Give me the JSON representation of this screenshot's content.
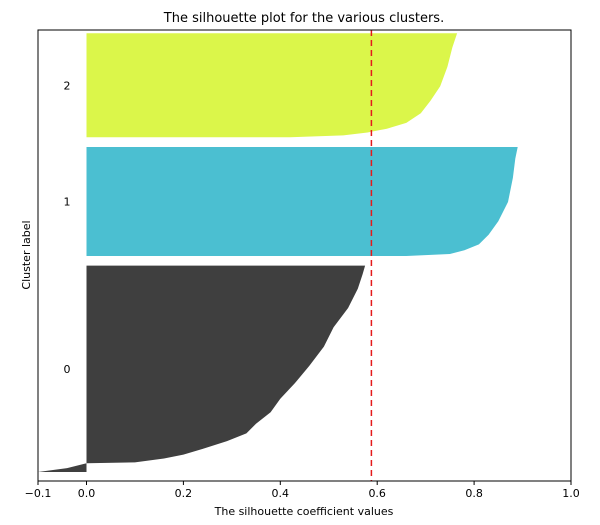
{
  "chart_data": {
    "type": "area",
    "title": "The silhouette plot for the various clusters.",
    "xlabel": "The silhouette coefficient values",
    "ylabel": "Cluster label",
    "xlim": [
      -0.1,
      1.0
    ],
    "ylim": [
      0,
      450
    ],
    "xticks": [
      "−0.1",
      "0.0",
      "0.2",
      "0.4",
      "0.6",
      "0.8",
      "1.0"
    ],
    "xtick_values": [
      -0.1,
      0.0,
      0.2,
      0.4,
      0.6,
      0.8,
      1.0
    ],
    "grid": false,
    "average_silhouette": 0.588,
    "average_line_color": "#e41a1c",
    "clusters": [
      {
        "label": "0",
        "color": "#3f3f3f",
        "y_lower": 0,
        "y_upper": 214,
        "profile": [
          [
            0,
            -0.1
          ],
          [
            4,
            -0.04
          ],
          [
            9,
            0.0
          ],
          [
            10,
            0.1
          ],
          [
            14,
            0.16
          ],
          [
            18,
            0.2
          ],
          [
            24,
            0.24
          ],
          [
            32,
            0.29
          ],
          [
            40,
            0.33
          ],
          [
            50,
            0.35
          ],
          [
            62,
            0.38
          ],
          [
            76,
            0.4
          ],
          [
            92,
            0.43
          ],
          [
            110,
            0.46
          ],
          [
            130,
            0.49
          ],
          [
            150,
            0.51
          ],
          [
            170,
            0.54
          ],
          [
            190,
            0.56
          ],
          [
            205,
            0.57
          ],
          [
            214,
            0.575
          ]
        ]
      },
      {
        "label": "1",
        "color": "#4bbfd1",
        "y_lower": 224,
        "y_upper": 337,
        "profile": [
          [
            224,
            0.66
          ],
          [
            226,
            0.75
          ],
          [
            230,
            0.78
          ],
          [
            236,
            0.81
          ],
          [
            246,
            0.83
          ],
          [
            260,
            0.85
          ],
          [
            280,
            0.87
          ],
          [
            305,
            0.88
          ],
          [
            325,
            0.885
          ],
          [
            337,
            0.89
          ]
        ]
      },
      {
        "label": "2",
        "color": "#dbf64a",
        "y_lower": 347,
        "y_upper": 455,
        "profile": [
          [
            347,
            0.42
          ],
          [
            349,
            0.53
          ],
          [
            352,
            0.58
          ],
          [
            356,
            0.62
          ],
          [
            362,
            0.66
          ],
          [
            372,
            0.69
          ],
          [
            385,
            0.71
          ],
          [
            400,
            0.73
          ],
          [
            420,
            0.745
          ],
          [
            440,
            0.755
          ],
          [
            455,
            0.765
          ]
        ]
      }
    ]
  }
}
